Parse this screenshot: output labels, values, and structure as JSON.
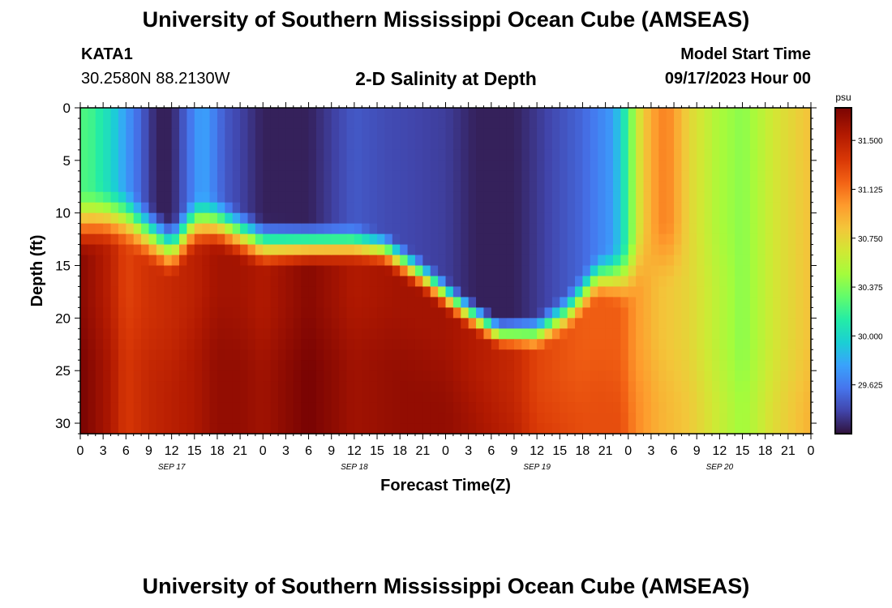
{
  "header": {
    "title": "University of Southern Mississippi Ocean Cube (AMSEAS)",
    "station": "KATA1",
    "coords": "30.2580N  88.2130W",
    "subtitle": "2-D Salinity at Depth",
    "model_start_label": "Model Start Time",
    "model_start_value": "09/17/2023 Hour 00"
  },
  "footer": {
    "title": "University of Southern Mississippi Ocean Cube (AMSEAS)"
  },
  "chart_data": {
    "type": "heatmap",
    "title": "2-D Salinity at Depth",
    "xlabel": "Forecast Time(Z)",
    "ylabel": "Depth (ft)",
    "x_range_hours": [
      0,
      96
    ],
    "y_range_ft": [
      0,
      31
    ],
    "y_inverted": true,
    "x_tick_labels": [
      "0",
      "3",
      "6",
      "9",
      "12",
      "15",
      "18",
      "21",
      "0",
      "3",
      "6",
      "9",
      "12",
      "15",
      "18",
      "21",
      "0",
      "3",
      "6",
      "9",
      "12",
      "15",
      "18",
      "21",
      "0",
      "3",
      "6",
      "9",
      "12",
      "15",
      "18",
      "21",
      "0"
    ],
    "date_labels": [
      {
        "label": "SEP 17",
        "hour": 12
      },
      {
        "label": "SEP 18",
        "hour": 36
      },
      {
        "label": "SEP 19",
        "hour": 60
      },
      {
        "label": "SEP 20",
        "hour": 84
      }
    ],
    "y_ticks": [
      0,
      5,
      10,
      15,
      20,
      25,
      30
    ],
    "colorbar": {
      "unit": "psu",
      "min": 29.25,
      "max": 31.75,
      "tick_values": [
        31.5,
        31.125,
        30.75,
        30.375,
        30.0,
        29.625
      ],
      "tick_labels": [
        "31.500",
        "31.125",
        "30.750",
        "30.375",
        "30.000",
        "29.625"
      ]
    },
    "field_model": {
      "surface_psu": [
        {
          "h": 0,
          "v": 30.25
        },
        {
          "h": 1.5,
          "v": 30.2
        },
        {
          "h": 4,
          "v": 30.0
        },
        {
          "h": 6,
          "v": 29.75
        },
        {
          "h": 10,
          "v": 29.3
        },
        {
          "h": 12,
          "v": 29.3
        },
        {
          "h": 16,
          "v": 29.8
        },
        {
          "h": 19,
          "v": 29.5
        },
        {
          "h": 24,
          "v": 29.3
        },
        {
          "h": 30,
          "v": 29.3
        },
        {
          "h": 33,
          "v": 29.4
        },
        {
          "h": 36,
          "v": 29.5
        },
        {
          "h": 40,
          "v": 29.45
        },
        {
          "h": 48,
          "v": 29.4
        },
        {
          "h": 52,
          "v": 29.3
        },
        {
          "h": 57,
          "v": 29.3
        },
        {
          "h": 66,
          "v": 29.55
        },
        {
          "h": 70,
          "v": 29.75
        },
        {
          "h": 72,
          "v": 30.2
        },
        {
          "h": 73,
          "v": 30.6
        },
        {
          "h": 75,
          "v": 30.95
        },
        {
          "h": 77,
          "v": 31.1
        },
        {
          "h": 80,
          "v": 30.75
        },
        {
          "h": 84,
          "v": 30.5
        },
        {
          "h": 87,
          "v": 30.4
        },
        {
          "h": 91,
          "v": 30.65
        },
        {
          "h": 96,
          "v": 30.85
        }
      ],
      "halocline_depth_ft": [
        {
          "h": 0,
          "d": 11
        },
        {
          "h": 3,
          "d": 10.5
        },
        {
          "h": 6,
          "d": 10.5
        },
        {
          "h": 9,
          "d": 12
        },
        {
          "h": 12,
          "d": 13.5
        },
        {
          "h": 15,
          "d": 11
        },
        {
          "h": 18,
          "d": 11
        },
        {
          "h": 24,
          "d": 13
        },
        {
          "h": 30,
          "d": 13
        },
        {
          "h": 36,
          "d": 13
        },
        {
          "h": 40,
          "d": 13.5
        },
        {
          "h": 45,
          "d": 16
        },
        {
          "h": 50,
          "d": 19
        },
        {
          "h": 55,
          "d": 21.5
        },
        {
          "h": 60,
          "d": 21.5
        },
        {
          "h": 64,
          "d": 19.5
        },
        {
          "h": 68,
          "d": 16
        },
        {
          "h": 72,
          "d": 16
        },
        {
          "h": 74,
          "d": 14
        },
        {
          "h": 96,
          "d": 14
        }
      ],
      "halocline_thickness_ft": [
        {
          "h": 0,
          "t": 7
        },
        {
          "h": 30,
          "t": 5
        },
        {
          "h": 40,
          "t": 4
        },
        {
          "h": 55,
          "t": 3.5
        },
        {
          "h": 68,
          "t": 5
        },
        {
          "h": 72,
          "t": 7
        },
        {
          "h": 96,
          "t": 8
        }
      ],
      "bottom_psu": [
        {
          "h": 0,
          "v": 31.7
        },
        {
          "h": 4,
          "v": 31.5
        },
        {
          "h": 6,
          "v": 31.3
        },
        {
          "h": 9,
          "v": 31.4
        },
        {
          "h": 12,
          "v": 31.45
        },
        {
          "h": 15,
          "v": 31.5
        },
        {
          "h": 18,
          "v": 31.6
        },
        {
          "h": 21,
          "v": 31.6
        },
        {
          "h": 24,
          "v": 31.55
        },
        {
          "h": 30,
          "v": 31.7
        },
        {
          "h": 36,
          "v": 31.55
        },
        {
          "h": 42,
          "v": 31.6
        },
        {
          "h": 48,
          "v": 31.6
        },
        {
          "h": 54,
          "v": 31.5
        },
        {
          "h": 57,
          "v": 31.45
        },
        {
          "h": 60,
          "v": 31.3
        },
        {
          "h": 66,
          "v": 31.2
        },
        {
          "h": 71,
          "v": 31.2
        },
        {
          "h": 73,
          "v": 31.0
        },
        {
          "h": 76,
          "v": 30.85
        },
        {
          "h": 80,
          "v": 30.75
        },
        {
          "h": 84,
          "v": 30.55
        },
        {
          "h": 87,
          "v": 30.4
        },
        {
          "h": 91,
          "v": 30.65
        },
        {
          "h": 96,
          "v": 30.85
        }
      ]
    }
  }
}
